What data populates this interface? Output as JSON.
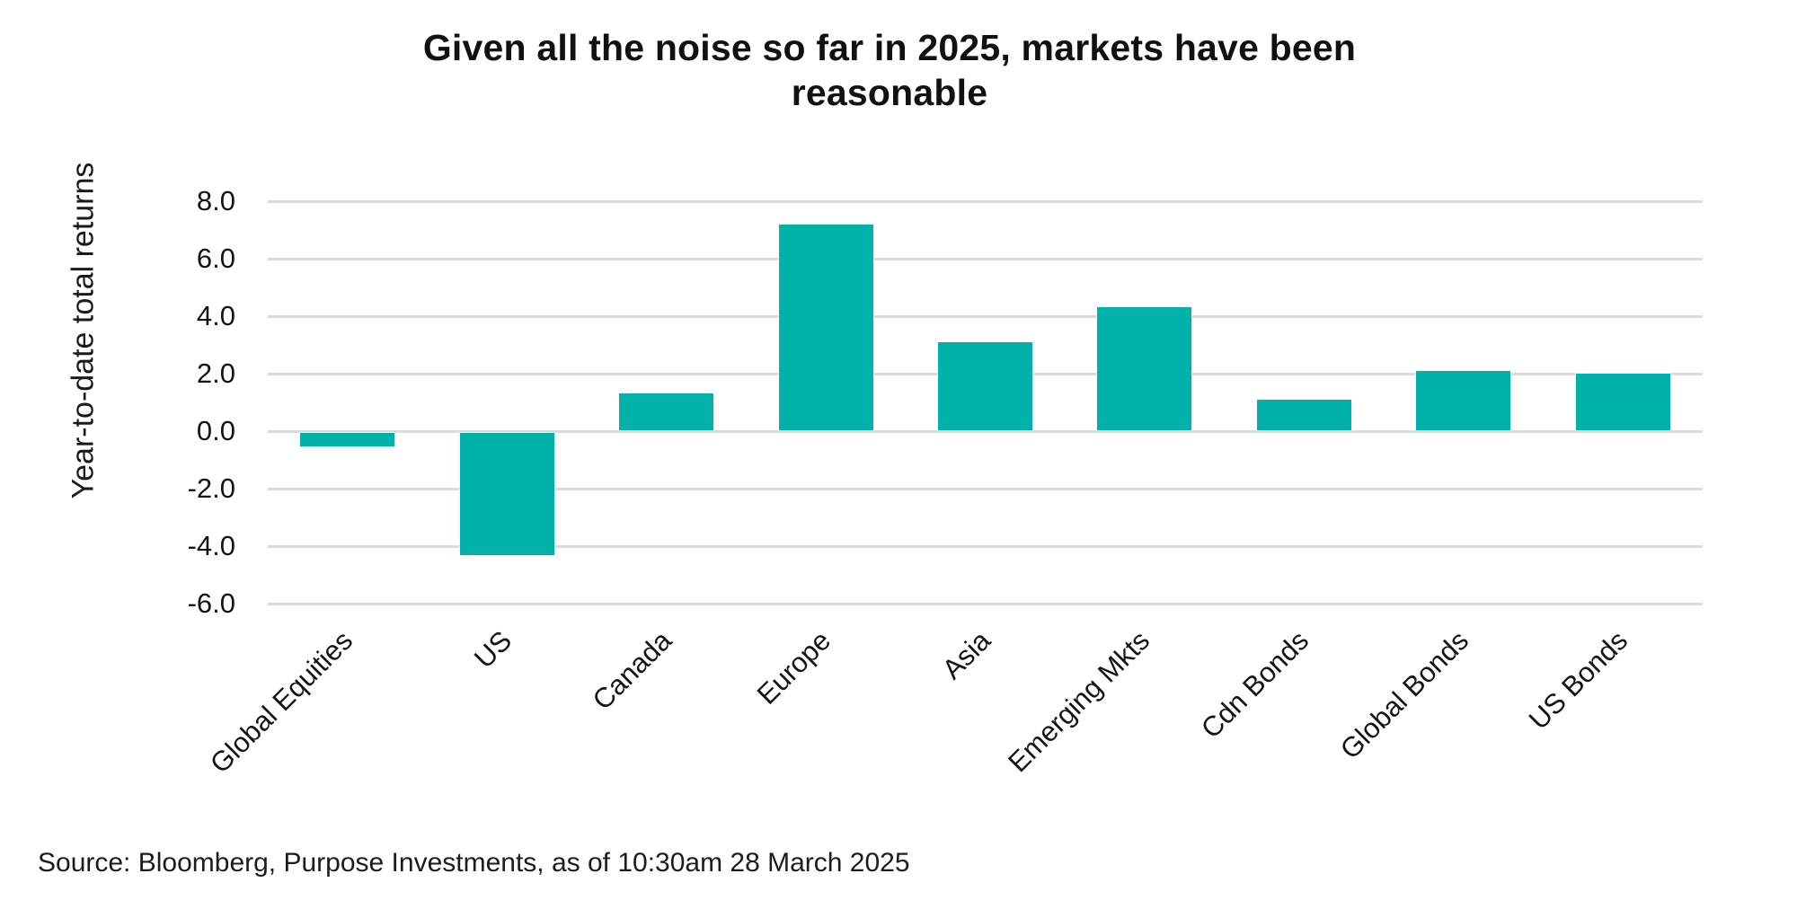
{
  "page": {
    "background": "#ffffff"
  },
  "header": {
    "title": "Given all the noise so far in 2025, markets have been reasonable",
    "title_lines": [
      "Given all the noise so far in 2025, markets have been",
      "reasonable"
    ]
  },
  "chart_data": {
    "type": "bar",
    "title": "Given all the noise so far in 2025, markets have been reasonable",
    "xlabel": "",
    "ylabel": "Year-to-date total returns",
    "categories": [
      "Global Equities",
      "US",
      "Canada",
      "Europe",
      "Asia",
      "Emerging Mkts",
      "Cdn Bonds",
      "Global Bonds",
      "US Bonds"
    ],
    "values": [
      -0.5,
      -4.3,
      1.3,
      7.2,
      3.1,
      4.3,
      1.1,
      2.1,
      2.0
    ],
    "yticks": [
      8.0,
      6.0,
      4.0,
      2.0,
      0.0,
      -2.0,
      -4.0,
      -6.0
    ],
    "ytick_labels": [
      "8.0",
      "6.0",
      "4.0",
      "2.0",
      "0.0",
      "-2.0",
      "-4.0",
      "-6.0"
    ],
    "ylim": [
      -6.0,
      8.0
    ],
    "grid": "horizontal",
    "legend": "none",
    "bar_color": "#00B2AA",
    "gridline_color": "#DBDBDB",
    "text_color": "#141414"
  },
  "footer": {
    "source": "Source: Bloomberg, Purpose Investments, as of 10:30am 28 March 2025"
  }
}
